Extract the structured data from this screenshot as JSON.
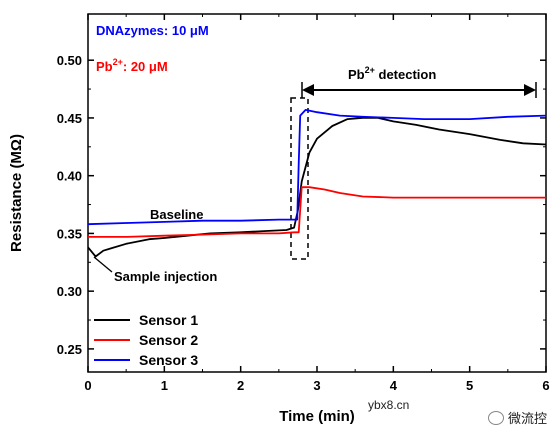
{
  "chart_data": {
    "type": "line",
    "xlabel": "Time (min)",
    "ylabel": "Resistance (MΩ)",
    "xlim": [
      0,
      6
    ],
    "ylim": [
      0.23,
      0.54
    ],
    "x_ticks": [
      "0",
      "1",
      "2",
      "3",
      "4",
      "5",
      "6"
    ],
    "y_ticks": [
      "0.25",
      "0.30",
      "0.35",
      "0.40",
      "0.45",
      "0.50"
    ],
    "grid": false,
    "legend_position": "bottom-left",
    "annotations": {
      "dnazymes": "DNAzymes: 10 μM",
      "pb_prefix": "Pb",
      "pb_sup": "2+",
      "pb_suffix": ": 20 μM",
      "detection_prefix": "Pb",
      "detection_sup": "2+",
      "detection_suffix": " detection",
      "baseline": "Baseline",
      "sample_injection": "Sample injection"
    },
    "series": [
      {
        "name": "Sensor 1",
        "color": "#000000",
        "points": [
          [
            0,
            0.338
          ],
          [
            0.1,
            0.33
          ],
          [
            0.2,
            0.335
          ],
          [
            0.3,
            0.337
          ],
          [
            0.5,
            0.341
          ],
          [
            0.8,
            0.345
          ],
          [
            1.0,
            0.346
          ],
          [
            1.3,
            0.348
          ],
          [
            1.6,
            0.35
          ],
          [
            2.0,
            0.351
          ],
          [
            2.3,
            0.352
          ],
          [
            2.6,
            0.353
          ],
          [
            2.7,
            0.355
          ],
          [
            2.75,
            0.37
          ],
          [
            2.8,
            0.395
          ],
          [
            2.9,
            0.42
          ],
          [
            3.0,
            0.432
          ],
          [
            3.2,
            0.443
          ],
          [
            3.4,
            0.449
          ],
          [
            3.6,
            0.45
          ],
          [
            3.8,
            0.45
          ],
          [
            4.0,
            0.447
          ],
          [
            4.3,
            0.444
          ],
          [
            4.6,
            0.44
          ],
          [
            5.0,
            0.436
          ],
          [
            5.4,
            0.431
          ],
          [
            5.7,
            0.428
          ],
          [
            6.0,
            0.427
          ]
        ]
      },
      {
        "name": "Sensor 2",
        "color": "#ff0000",
        "points": [
          [
            0,
            0.347
          ],
          [
            0.5,
            0.347
          ],
          [
            1.0,
            0.348
          ],
          [
            1.5,
            0.349
          ],
          [
            2.0,
            0.35
          ],
          [
            2.5,
            0.35
          ],
          [
            2.7,
            0.351
          ],
          [
            2.76,
            0.351
          ],
          [
            2.8,
            0.39
          ],
          [
            2.9,
            0.39
          ],
          [
            3.1,
            0.388
          ],
          [
            3.3,
            0.385
          ],
          [
            3.6,
            0.382
          ],
          [
            4.0,
            0.381
          ],
          [
            5.0,
            0.381
          ],
          [
            6.0,
            0.381
          ]
        ]
      },
      {
        "name": "Sensor 3",
        "color": "#0000ff",
        "points": [
          [
            0,
            0.358
          ],
          [
            0.5,
            0.359
          ],
          [
            1.0,
            0.36
          ],
          [
            1.5,
            0.361
          ],
          [
            2.0,
            0.361
          ],
          [
            2.5,
            0.362
          ],
          [
            2.74,
            0.362
          ],
          [
            2.76,
            0.41
          ],
          [
            2.78,
            0.452
          ],
          [
            2.85,
            0.457
          ],
          [
            3.0,
            0.455
          ],
          [
            3.3,
            0.452
          ],
          [
            3.6,
            0.451
          ],
          [
            4.0,
            0.45
          ],
          [
            4.4,
            0.449
          ],
          [
            5.0,
            0.449
          ],
          [
            5.5,
            0.451
          ],
          [
            6.0,
            0.452
          ]
        ]
      }
    ]
  },
  "watermark": {
    "site": "ybx8.cn",
    "brand": "微流控"
  }
}
